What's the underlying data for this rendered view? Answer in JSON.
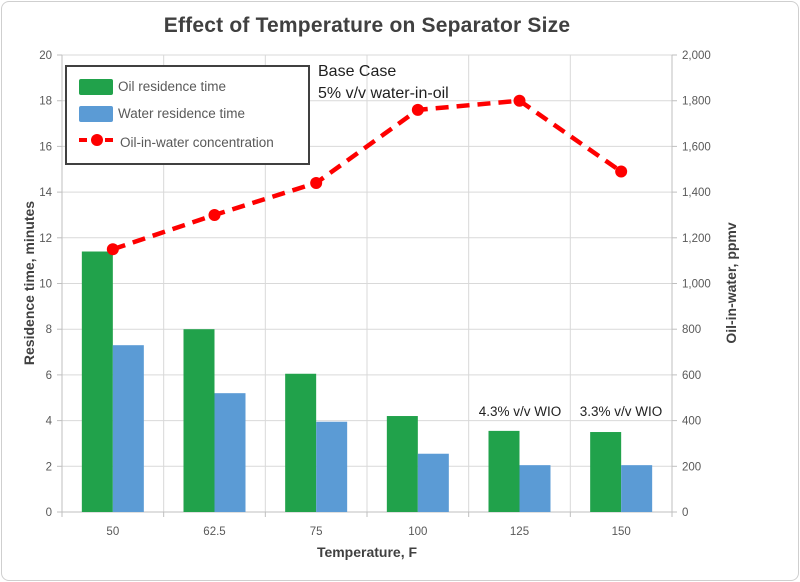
{
  "chart_data": {
    "type": "bar",
    "subtype": "combo-bar-line",
    "title": "Effect of Temperature on Separator Size",
    "xlabel": "Temperature, F",
    "categories": [
      "50",
      "62.5",
      "75",
      "100",
      "125",
      "150"
    ],
    "left_axis": {
      "label": "Residence time, minutes",
      "min": 0,
      "max": 20,
      "step": 2
    },
    "right_axis": {
      "label": "Oil-in-water, ppmv",
      "min": 0,
      "max": 2000,
      "step": 200
    },
    "grid": true,
    "legend_position": "top-left",
    "series": [
      {
        "name": "Oil residence time",
        "type": "bar",
        "axis": "left",
        "color": "#21A24B",
        "values": [
          11.4,
          8.0,
          6.05,
          4.2,
          3.55,
          3.5
        ]
      },
      {
        "name": "Water residence time",
        "type": "bar",
        "axis": "left",
        "color": "#5B9BD5",
        "values": [
          7.3,
          5.2,
          3.95,
          2.55,
          2.05,
          2.05
        ]
      },
      {
        "name": "Oil-in-water concentration",
        "type": "line",
        "axis": "right",
        "color": "#FE0000",
        "dashed": true,
        "values": [
          1150,
          1300,
          1440,
          1760,
          1800,
          1490
        ]
      }
    ],
    "annotations": [
      {
        "id": "base-case",
        "lines": [
          "Base Case",
          "5% v/v water-in-oil"
        ]
      },
      {
        "id": "wio-125",
        "text": "4.3% v/v WIO"
      },
      {
        "id": "wio-150",
        "text": "3.3% v/v WIO"
      }
    ],
    "colors": {
      "grid": "#D9D9D9",
      "axis_line": "#BFBFBF",
      "tick_text": "#595959",
      "title_text": "#404040"
    }
  }
}
